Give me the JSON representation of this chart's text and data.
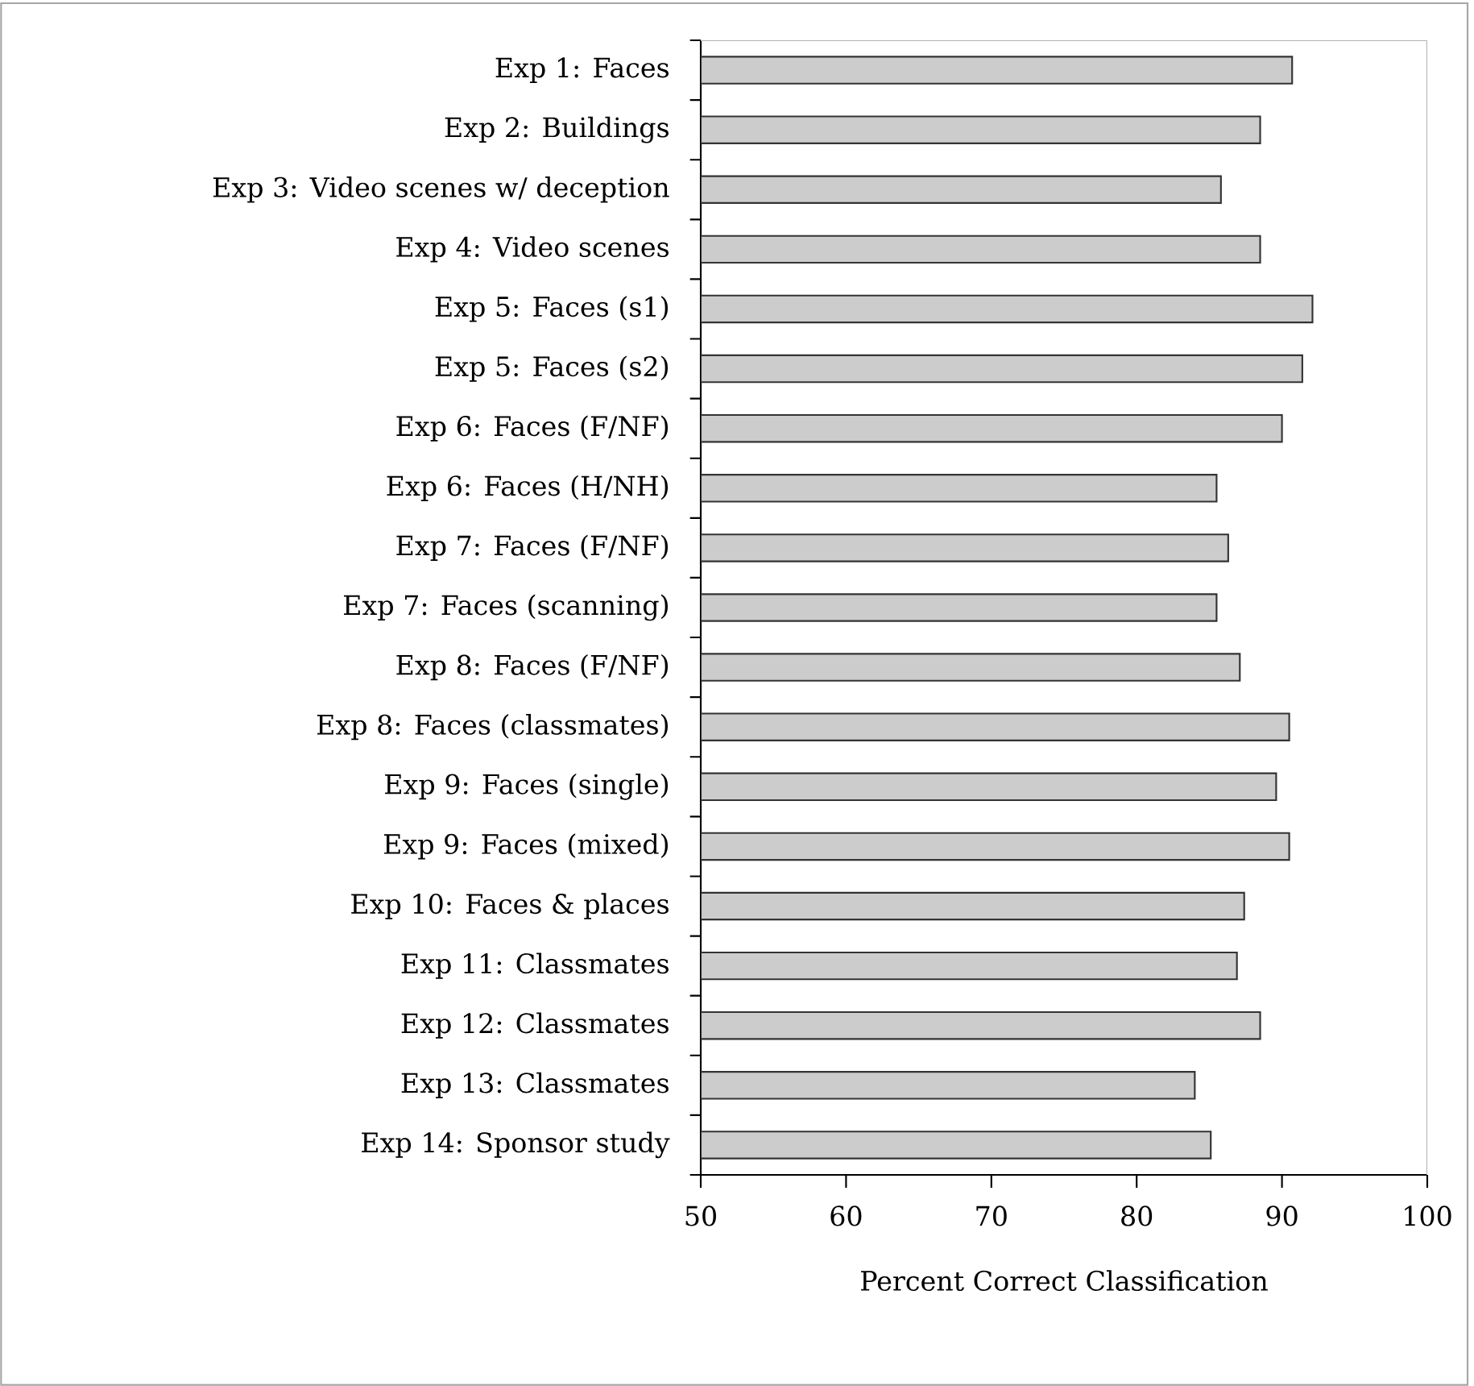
{
  "chart_data": {
    "type": "bar",
    "orientation": "horizontal",
    "categories": [
      "Exp 1: Faces",
      "Exp 2: Buildings",
      "Exp 3: Video scenes w/ deception",
      "Exp 4: Video scenes",
      "Exp 5: Faces (s1)",
      "Exp 5: Faces (s2)",
      "Exp 6: Faces (F/NF)",
      "Exp 6: Faces (H/NH)",
      "Exp 7: Faces (F/NF)",
      "Exp 7: Faces (scanning)",
      "Exp 8: Faces (F/NF)",
      "Exp 8: Faces (classmates)",
      "Exp 9: Faces (single)",
      "Exp 9: Faces (mixed)",
      "Exp 10: Faces & places",
      "Exp 11: Classmates",
      "Exp 12: Classmates",
      "Exp 13: Classmates",
      "Exp 14: Sponsor study"
    ],
    "values": [
      90.7,
      88.5,
      85.8,
      88.5,
      92.1,
      91.4,
      90.0,
      85.5,
      86.3,
      85.5,
      87.1,
      90.5,
      89.6,
      90.5,
      87.4,
      86.9,
      88.5,
      84.0,
      85.1
    ],
    "color": "#cccccc",
    "xlim": [
      50,
      100
    ],
    "xticks": [
      50,
      60,
      70,
      80,
      90,
      100
    ],
    "xlabel": "Percent Correct Classification",
    "grid": false
  }
}
